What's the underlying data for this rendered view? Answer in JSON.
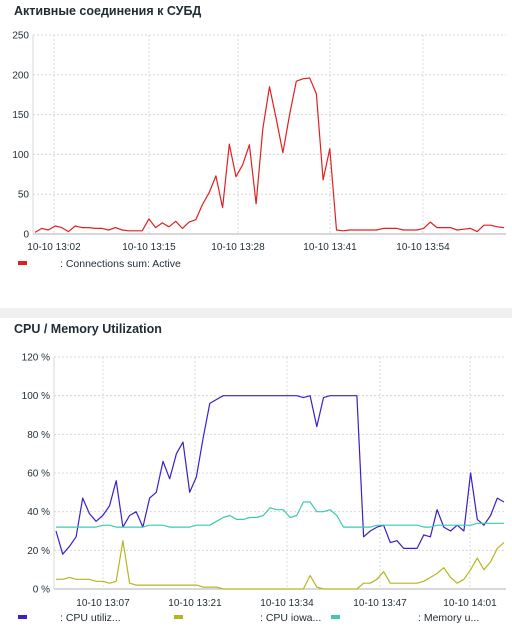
{
  "charts": [
    {
      "title": "Активные соединения к СУБД",
      "type": "line",
      "y_ticks": [
        "250",
        "200",
        "150",
        "100",
        "50",
        "0"
      ],
      "ylim": [
        0,
        250
      ],
      "x_ticks": [
        "10-10 13:02",
        "10-10 13:15",
        "10-10 13:28",
        "10-10 13:41",
        "10-10 13:54"
      ],
      "grid": true,
      "series": [
        {
          "name": "Connections sum: Active",
          "color": "#e02020",
          "values": [
            2,
            7,
            5,
            10,
            8,
            3,
            10,
            8,
            8,
            7,
            7,
            5,
            8,
            5,
            4,
            4,
            4,
            19,
            8,
            14,
            9,
            16,
            7,
            15,
            18,
            37,
            52,
            73,
            33,
            113,
            72,
            87,
            112,
            38,
            132,
            185,
            145,
            102,
            150,
            192,
            195,
            196,
            176,
            68,
            107,
            5,
            4,
            5,
            5,
            5,
            5,
            5,
            7,
            7,
            7,
            5,
            5,
            5,
            7,
            15,
            8,
            8,
            8,
            5,
            6,
            7,
            3,
            11,
            11,
            9,
            8
          ]
        }
      ]
    },
    {
      "title": "CPU / Memory Utilization",
      "type": "line",
      "y_ticks": [
        "120 %",
        "100 %",
        "80 %",
        "60 %",
        "40 %",
        "20 %",
        "0 %"
      ],
      "ylim": [
        0,
        120
      ],
      "x_ticks": [
        "10-10 13:07",
        "10-10 13:21",
        "10-10 13:34",
        "10-10 13:47",
        "10-10 14:01"
      ],
      "grid": true,
      "series": [
        {
          "name": "CPU utiliz...",
          "color": "#3a20c8",
          "values": [
            30,
            18,
            22,
            27,
            47,
            39,
            35,
            38,
            43,
            56,
            32,
            38,
            40,
            32,
            47,
            50,
            66,
            57,
            70,
            76,
            50,
            58,
            78,
            96,
            98,
            100,
            100,
            100,
            100,
            100,
            100,
            100,
            100,
            100,
            100,
            100,
            100,
            99,
            100,
            84,
            99,
            100,
            100,
            100,
            100,
            100,
            27,
            30,
            32,
            33,
            24,
            25,
            21,
            21,
            21,
            28,
            27,
            41,
            32,
            30,
            33,
            30,
            60,
            36,
            33,
            38,
            47,
            45
          ]
        },
        {
          "name": "CPU iowa...",
          "color": "#b5b520",
          "values": [
            5,
            5,
            6,
            5,
            5,
            5,
            4,
            4,
            3,
            4,
            25,
            3,
            2,
            2,
            2,
            2,
            2,
            2,
            2,
            2,
            2,
            2,
            1,
            1,
            1,
            0,
            0,
            0,
            0,
            0,
            0,
            0,
            0,
            0,
            0,
            0,
            0,
            0,
            7,
            1,
            0,
            0,
            0,
            0,
            0,
            0,
            3,
            3,
            5,
            9,
            3,
            3,
            3,
            3,
            3,
            4,
            6,
            8,
            11,
            6,
            3,
            5,
            10,
            16,
            10,
            14,
            21,
            24
          ]
        },
        {
          "name": "Memory u...",
          "color": "#3ccab0",
          "values": [
            32,
            32,
            32,
            32,
            32,
            32,
            32,
            33,
            33,
            32,
            32,
            32,
            32,
            32,
            33,
            33,
            33,
            32,
            32,
            32,
            32,
            33,
            33,
            33,
            35,
            37,
            38,
            36,
            36,
            37,
            37,
            38,
            42,
            41,
            41,
            37,
            38,
            45,
            45,
            40,
            40,
            41,
            38,
            32,
            32,
            32,
            32,
            32,
            33,
            33,
            33,
            33,
            33,
            33,
            33,
            32,
            32,
            33,
            33,
            33,
            33,
            33,
            33,
            34,
            34,
            34,
            34,
            34
          ]
        }
      ]
    }
  ]
}
